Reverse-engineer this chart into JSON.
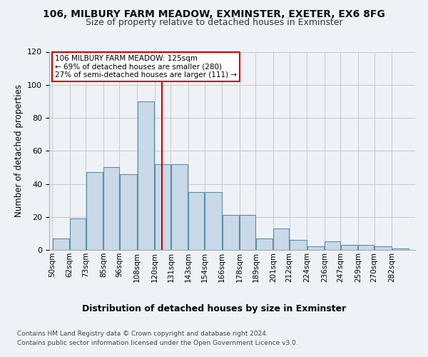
{
  "title1": "106, MILBURY FARM MEADOW, EXMINSTER, EXETER, EX6 8FG",
  "title2": "Size of property relative to detached houses in Exminster",
  "xlabel": "Distribution of detached houses by size in Exminster",
  "ylabel": "Number of detached properties",
  "footer1": "Contains HM Land Registry data © Crown copyright and database right 2024.",
  "footer2": "Contains public sector information licensed under the Open Government Licence v3.0.",
  "bin_labels": [
    "50sqm",
    "62sqm",
    "73sqm",
    "85sqm",
    "96sqm",
    "108sqm",
    "120sqm",
    "131sqm",
    "143sqm",
    "154sqm",
    "166sqm",
    "178sqm",
    "189sqm",
    "201sqm",
    "212sqm",
    "224sqm",
    "236sqm",
    "247sqm",
    "259sqm",
    "270sqm",
    "282sqm"
  ],
  "bin_edges": [
    50,
    62,
    73,
    85,
    96,
    108,
    120,
    131,
    143,
    154,
    166,
    178,
    189,
    201,
    212,
    224,
    236,
    247,
    259,
    270,
    282,
    294
  ],
  "values": [
    7,
    19,
    47,
    50,
    46,
    90,
    52,
    52,
    35,
    35,
    21,
    21,
    7,
    13,
    6,
    2,
    5,
    3,
    3,
    2,
    1
  ],
  "bar_color": "#c9d9e8",
  "bar_edge_color": "#5a8faa",
  "bar_linewidth": 0.8,
  "grid_color": "#cccccc",
  "property_line_x": 125,
  "annotation_text1": "106 MILBURY FARM MEADOW: 125sqm",
  "annotation_text2": "← 69% of detached houses are smaller (280)",
  "annotation_text3": "27% of semi-detached houses are larger (111) →",
  "annotation_box_color": "#ffffff",
  "annotation_border_color": "#cc0000",
  "vline_color": "#cc0000",
  "ylim": [
    0,
    120
  ],
  "yticks": [
    0,
    20,
    40,
    60,
    80,
    100,
    120
  ],
  "background_color": "#eef2f7",
  "axes_background": "#eef2f7"
}
